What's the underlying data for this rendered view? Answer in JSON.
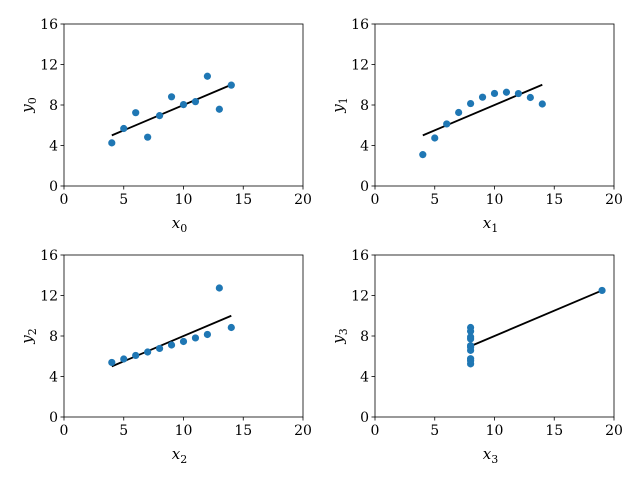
{
  "chart_data": [
    {
      "type": "scatter",
      "xlabel": "x",
      "xlabel_sub": "0",
      "ylabel": "y",
      "ylabel_sub": "0",
      "xlim": [
        0,
        20
      ],
      "ylim": [
        0,
        16
      ],
      "xticks": [
        0,
        5,
        10,
        15,
        20
      ],
      "yticks": [
        0,
        4,
        8,
        12,
        16
      ],
      "grid": false,
      "point_color": "#1f77b4",
      "line_color": "#000000",
      "fit_line": {
        "x": [
          4,
          14
        ],
        "y": [
          5.0,
          10.0
        ]
      },
      "points": [
        {
          "x": 10,
          "y": 8.04
        },
        {
          "x": 8,
          "y": 6.95
        },
        {
          "x": 13,
          "y": 7.58
        },
        {
          "x": 9,
          "y": 8.81
        },
        {
          "x": 11,
          "y": 8.33
        },
        {
          "x": 14,
          "y": 9.96
        },
        {
          "x": 6,
          "y": 7.24
        },
        {
          "x": 4,
          "y": 4.26
        },
        {
          "x": 12,
          "y": 10.84
        },
        {
          "x": 7,
          "y": 4.82
        },
        {
          "x": 5,
          "y": 5.68
        }
      ]
    },
    {
      "type": "scatter",
      "xlabel": "x",
      "xlabel_sub": "1",
      "ylabel": "y",
      "ylabel_sub": "1",
      "xlim": [
        0,
        20
      ],
      "ylim": [
        0,
        16
      ],
      "xticks": [
        0,
        5,
        10,
        15,
        20
      ],
      "yticks": [
        0,
        4,
        8,
        12,
        16
      ],
      "grid": false,
      "point_color": "#1f77b4",
      "line_color": "#000000",
      "fit_line": {
        "x": [
          4,
          14
        ],
        "y": [
          5.0,
          10.0
        ]
      },
      "points": [
        {
          "x": 10,
          "y": 9.14
        },
        {
          "x": 8,
          "y": 8.14
        },
        {
          "x": 13,
          "y": 8.74
        },
        {
          "x": 9,
          "y": 8.77
        },
        {
          "x": 11,
          "y": 9.26
        },
        {
          "x": 14,
          "y": 8.1
        },
        {
          "x": 6,
          "y": 6.13
        },
        {
          "x": 4,
          "y": 3.1
        },
        {
          "x": 12,
          "y": 9.13
        },
        {
          "x": 7,
          "y": 7.26
        },
        {
          "x": 5,
          "y": 4.74
        }
      ]
    },
    {
      "type": "scatter",
      "xlabel": "x",
      "xlabel_sub": "2",
      "ylabel": "y",
      "ylabel_sub": "2",
      "xlim": [
        0,
        20
      ],
      "ylim": [
        0,
        16
      ],
      "xticks": [
        0,
        5,
        10,
        15,
        20
      ],
      "yticks": [
        0,
        4,
        8,
        12,
        16
      ],
      "grid": false,
      "point_color": "#1f77b4",
      "line_color": "#000000",
      "fit_line": {
        "x": [
          4,
          14
        ],
        "y": [
          5.0,
          10.0
        ]
      },
      "points": [
        {
          "x": 10,
          "y": 7.46
        },
        {
          "x": 8,
          "y": 6.77
        },
        {
          "x": 13,
          "y": 12.74
        },
        {
          "x": 9,
          "y": 7.11
        },
        {
          "x": 11,
          "y": 7.81
        },
        {
          "x": 14,
          "y": 8.84
        },
        {
          "x": 6,
          "y": 6.08
        },
        {
          "x": 4,
          "y": 5.39
        },
        {
          "x": 12,
          "y": 8.15
        },
        {
          "x": 7,
          "y": 6.42
        },
        {
          "x": 5,
          "y": 5.73
        }
      ]
    },
    {
      "type": "scatter",
      "xlabel": "x",
      "xlabel_sub": "3",
      "ylabel": "y",
      "ylabel_sub": "3",
      "xlim": [
        0,
        20
      ],
      "ylim": [
        0,
        16
      ],
      "xticks": [
        0,
        5,
        10,
        15,
        20
      ],
      "yticks": [
        0,
        4,
        8,
        12,
        16
      ],
      "grid": false,
      "point_color": "#1f77b4",
      "line_color": "#000000",
      "fit_line": {
        "x": [
          8,
          19
        ],
        "y": [
          7.0,
          12.5
        ]
      },
      "points": [
        {
          "x": 8,
          "y": 6.58
        },
        {
          "x": 8,
          "y": 5.76
        },
        {
          "x": 8,
          "y": 7.71
        },
        {
          "x": 8,
          "y": 8.84
        },
        {
          "x": 8,
          "y": 8.47
        },
        {
          "x": 8,
          "y": 7.04
        },
        {
          "x": 8,
          "y": 5.25
        },
        {
          "x": 19,
          "y": 12.5
        },
        {
          "x": 8,
          "y": 5.56
        },
        {
          "x": 8,
          "y": 7.91
        },
        {
          "x": 8,
          "y": 6.89
        }
      ]
    }
  ]
}
